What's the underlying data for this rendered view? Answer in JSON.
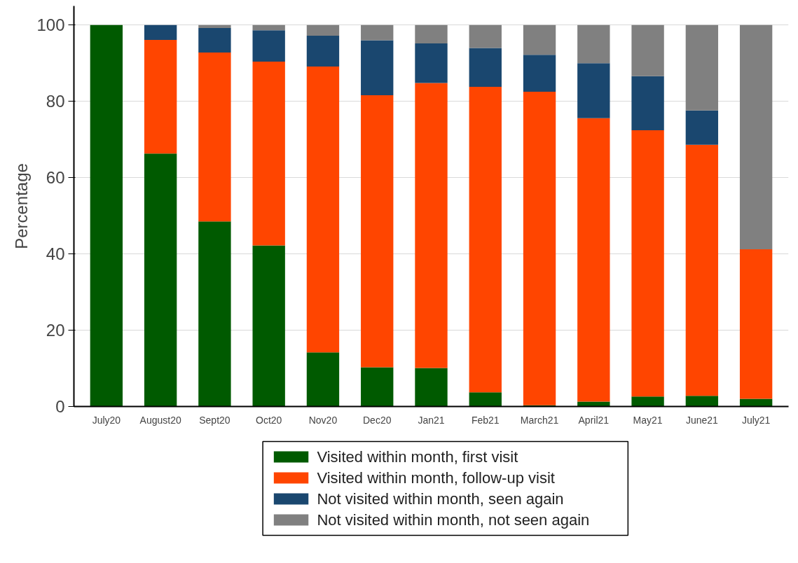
{
  "chart_data": {
    "type": "bar",
    "stacked": true,
    "ylabel": "Percentage",
    "categories": [
      "July20",
      "August20",
      "Sept20",
      "Oct20",
      "Nov20",
      "Dec20",
      "Jan21",
      "Feb21",
      "March21",
      "April21",
      "May21",
      "June21",
      "July21"
    ],
    "series": [
      {
        "name": "Visited within month, first visit",
        "color": "#005a00",
        "values": [
          100,
          66.3,
          48.5,
          42.2,
          14.2,
          10.3,
          10.1,
          3.7,
          0.3,
          1.3,
          2.6,
          2.8,
          2.0
        ]
      },
      {
        "name": "Visited within month, follow-up visit",
        "color": "#ff4500",
        "values": [
          0,
          29.8,
          44.3,
          48.2,
          74.9,
          71.3,
          74.7,
          80.1,
          82.2,
          74.3,
          69.8,
          65.8,
          39.2
        ]
      },
      {
        "name": "Not visited within month, seen again",
        "color": "#1a476f",
        "values": [
          0,
          3.9,
          6.4,
          8.2,
          8.1,
          14.4,
          10.4,
          10.2,
          9.7,
          14.4,
          14.2,
          9.0,
          0
        ]
      },
      {
        "name": "Not visited within month, not seen again",
        "color": "#808080",
        "values": [
          0,
          0,
          0.8,
          1.4,
          2.8,
          4.0,
          4.8,
          6.0,
          7.8,
          10.0,
          13.4,
          22.4,
          58.8
        ]
      }
    ],
    "ylim": [
      0,
      105
    ],
    "yticks": [
      0,
      20,
      40,
      60,
      80,
      100
    ],
    "grid": "y",
    "legend": "bottom"
  }
}
